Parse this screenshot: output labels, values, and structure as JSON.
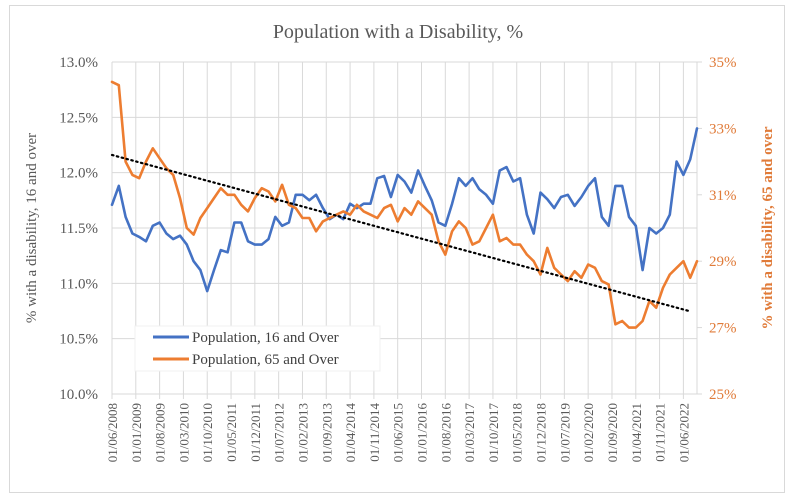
{
  "chart_data": {
    "type": "line",
    "title": "Population with a Disability, %",
    "xlabel": "",
    "ylabel": "% with a disability, 16 and over",
    "y2label": "% with a disability, 65 and over",
    "ylim": [
      10.0,
      13.0
    ],
    "y2lim": [
      25,
      35
    ],
    "yticks": [
      "10.0%",
      "10.5%",
      "11.0%",
      "11.5%",
      "12.0%",
      "12.5%",
      "13.0%"
    ],
    "y2ticks": [
      "25%",
      "27%",
      "29%",
      "31%",
      "33%",
      "35%"
    ],
    "xticks": [
      "01/06/2008",
      "01/01/2009",
      "01/08/2009",
      "01/03/2010",
      "01/10/2010",
      "01/05/2011",
      "01/12/2011",
      "01/07/2012",
      "01/02/2013",
      "01/09/2013",
      "01/04/2014",
      "01/11/2014",
      "01/06/2015",
      "01/01/2016",
      "01/08/2016",
      "01/03/2017",
      "01/10/2017",
      "01/05/2018",
      "01/12/2018",
      "01/07/2019",
      "01/02/2020",
      "01/09/2020",
      "01/04/2021",
      "01/11/2021",
      "01/06/2022"
    ],
    "grid": true,
    "legend": "bottom-left",
    "x_start": "2008-06",
    "x_step": "1 month",
    "series": [
      {
        "name": "Population, 16 and Over",
        "axis": "left",
        "color": "#4472C4",
        "month_index": [
          0,
          2,
          4,
          6,
          8,
          10,
          12,
          14,
          16,
          18,
          20,
          22,
          24,
          26,
          28,
          30,
          32,
          34,
          36,
          38,
          40,
          42,
          44,
          46,
          48,
          50,
          52,
          54,
          56,
          58,
          60,
          62,
          64,
          66,
          68,
          70,
          72,
          74,
          76,
          78,
          80,
          82,
          84,
          86,
          88,
          90,
          92,
          94,
          96,
          98,
          100,
          102,
          104,
          106,
          108,
          110,
          112,
          114,
          116,
          118,
          120,
          122,
          124,
          126,
          128,
          130,
          132,
          134,
          136,
          138,
          140,
          142,
          144,
          146,
          148,
          150,
          152,
          154,
          156,
          158,
          160,
          162,
          164,
          166,
          168,
          170,
          172
        ],
        "values": [
          11.71,
          11.88,
          11.6,
          11.45,
          11.42,
          11.38,
          11.52,
          11.55,
          11.45,
          11.4,
          11.43,
          11.35,
          11.2,
          11.12,
          10.93,
          11.12,
          11.3,
          11.28,
          11.55,
          11.55,
          11.38,
          11.35,
          11.35,
          11.4,
          11.6,
          11.52,
          11.55,
          11.8,
          11.8,
          11.75,
          11.8,
          11.68,
          11.58,
          11.62,
          11.58,
          11.72,
          11.68,
          11.72,
          11.72,
          11.95,
          11.97,
          11.78,
          11.98,
          11.92,
          11.82,
          12.02,
          11.88,
          11.75,
          11.55,
          11.52,
          11.72,
          11.95,
          11.88,
          11.95,
          11.85,
          11.8,
          11.72,
          12.02,
          12.05,
          11.92,
          11.95,
          11.62,
          11.45,
          11.82,
          11.76,
          11.68,
          11.78,
          11.8,
          11.7,
          11.78,
          11.88,
          11.95,
          11.6,
          11.52,
          11.88,
          11.88,
          11.6,
          11.52,
          11.12,
          11.5,
          11.45,
          11.5,
          11.62,
          12.1,
          11.98,
          12.12,
          12.4
        ]
      },
      {
        "name": "Population, 65 and Over",
        "axis": "right",
        "color": "#ED7D31",
        "month_index": [
          0,
          2,
          4,
          6,
          8,
          10,
          12,
          14,
          16,
          18,
          20,
          22,
          24,
          26,
          28,
          30,
          32,
          34,
          36,
          38,
          40,
          42,
          44,
          46,
          48,
          50,
          52,
          54,
          56,
          58,
          60,
          62,
          64,
          66,
          68,
          70,
          72,
          74,
          76,
          78,
          80,
          82,
          84,
          86,
          88,
          90,
          92,
          94,
          96,
          98,
          100,
          102,
          104,
          106,
          108,
          110,
          112,
          114,
          116,
          118,
          120,
          122,
          124,
          126,
          128,
          130,
          132,
          134,
          136,
          138,
          140,
          142,
          144,
          146,
          148,
          150,
          152,
          154,
          156,
          158,
          160,
          162,
          164,
          166,
          168,
          170,
          172
        ],
        "values": [
          34.4,
          34.3,
          32.0,
          31.6,
          31.5,
          32.0,
          32.4,
          32.1,
          31.8,
          31.6,
          30.9,
          30.0,
          29.8,
          30.3,
          30.6,
          30.9,
          31.2,
          31.0,
          31.0,
          30.7,
          30.5,
          30.9,
          31.2,
          31.1,
          30.8,
          31.3,
          30.7,
          30.6,
          30.3,
          30.3,
          29.9,
          30.2,
          30.3,
          30.4,
          30.5,
          30.4,
          30.7,
          30.5,
          30.4,
          30.3,
          30.6,
          30.7,
          30.2,
          30.6,
          30.4,
          30.8,
          30.6,
          30.4,
          29.6,
          29.2,
          29.9,
          30.2,
          30.0,
          29.5,
          29.6,
          30.0,
          30.4,
          29.6,
          29.7,
          29.5,
          29.5,
          29.2,
          29.0,
          28.6,
          29.4,
          28.8,
          28.6,
          28.4,
          28.7,
          28.5,
          28.9,
          28.8,
          28.4,
          28.3,
          27.1,
          27.2,
          27.0,
          27.0,
          27.2,
          27.8,
          27.6,
          28.2,
          28.6,
          28.8,
          29.0,
          28.5,
          29.0
        ]
      }
    ],
    "trendline": {
      "of_series": "Population, 65 and Over",
      "type": "linear",
      "style": "dotted",
      "color": "#000000",
      "start_value": 32.2,
      "end_value": 27.5
    }
  }
}
